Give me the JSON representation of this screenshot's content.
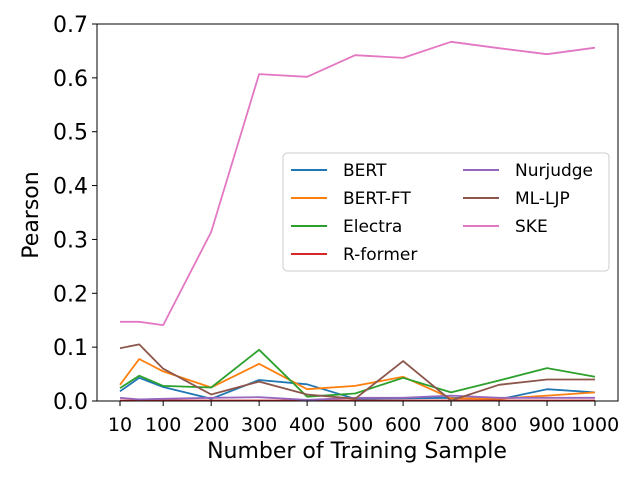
{
  "chart_data": {
    "type": "line",
    "xlabel": "Number of Training Sample",
    "ylabel": "Pearson",
    "ylim": [
      0,
      0.7
    ],
    "x_ticks": [
      "10",
      "100",
      "200",
      "300",
      "400",
      "500",
      "600",
      "700",
      "800",
      "900",
      "1000"
    ],
    "y_ticks": [
      "0.0",
      "0.1",
      "0.2",
      "0.3",
      "0.4",
      "0.5",
      "0.6",
      "0.7"
    ],
    "x": [
      10,
      50,
      100,
      200,
      300,
      400,
      500,
      600,
      700,
      800,
      900,
      1000
    ],
    "legend_position": "center-right",
    "grid": false,
    "series": [
      {
        "name": "BERT",
        "color": "#1f77b4",
        "values": [
          0.018,
          0.043,
          0.026,
          0.004,
          0.039,
          0.031,
          0.004,
          0.005,
          0.006,
          0.003,
          0.022,
          0.016
        ]
      },
      {
        "name": "BERT-FT",
        "color": "#ff7f0e",
        "values": [
          0.03,
          0.078,
          0.055,
          0.025,
          0.069,
          0.022,
          0.028,
          0.045,
          0.005,
          0.004,
          0.01,
          0.016
        ]
      },
      {
        "name": "Electra",
        "color": "#2ca02c",
        "values": [
          0.024,
          0.047,
          0.028,
          0.025,
          0.095,
          0.008,
          0.014,
          0.043,
          0.016,
          0.038,
          0.061,
          0.045
        ]
      },
      {
        "name": "R-former",
        "color": "#d62728",
        "values": [
          0.001,
          0.001,
          0.001,
          0.001,
          0.001,
          0.001,
          0.001,
          0.001,
          0.001,
          0.001,
          0.001,
          0.001
        ]
      },
      {
        "name": "Nurjudge",
        "color": "#9467bd",
        "values": [
          0.006,
          0.003,
          0.004,
          0.006,
          0.007,
          0.002,
          0.006,
          0.006,
          0.01,
          0.006,
          0.006,
          0.006
        ]
      },
      {
        "name": "ML-LJP",
        "color": "#8c564b",
        "values": [
          0.098,
          0.105,
          0.06,
          0.012,
          0.036,
          0.012,
          0.004,
          0.074,
          0.001,
          0.03,
          0.04,
          0.04
        ]
      },
      {
        "name": "SKE",
        "color": "#e377c2",
        "values": [
          0.147,
          0.147,
          0.141,
          0.314,
          0.607,
          0.602,
          0.642,
          0.637,
          0.667,
          0.655,
          0.644,
          0.656
        ]
      }
    ]
  }
}
